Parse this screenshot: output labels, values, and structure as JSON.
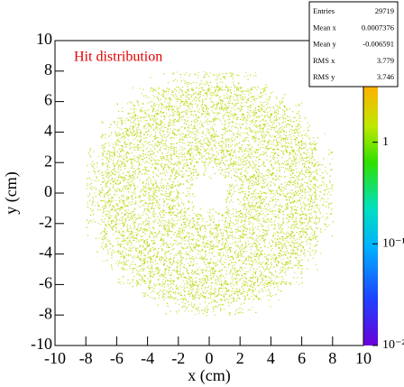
{
  "chart_data": {
    "type": "hist2d",
    "title": "Hit distribution",
    "xlabel": "x (cm)",
    "ylabel": "y (cm)",
    "xbins": [
      -10,
      -9,
      -8,
      -7,
      -6,
      -5,
      -4,
      -3,
      -2,
      -1,
      0,
      1,
      2,
      3,
      4,
      5,
      6,
      7,
      8,
      9,
      10
    ],
    "ybins": [
      -10,
      -9,
      -8,
      -7,
      -6,
      -5,
      -4,
      -3,
      -2,
      -1,
      0,
      1,
      2,
      3,
      4,
      5,
      6,
      7,
      8,
      9,
      10
    ],
    "z": [
      [
        0,
        0,
        0,
        0,
        0,
        0,
        0,
        0,
        0,
        0,
        0,
        0,
        0,
        0,
        0,
        0,
        0,
        0,
        0,
        0
      ],
      [
        0,
        0,
        0,
        0,
        0,
        0,
        0,
        0,
        0,
        0,
        0,
        0,
        0,
        0,
        0,
        0,
        0,
        0,
        0,
        0
      ],
      [
        0,
        0,
        0,
        0,
        0,
        0,
        5,
        30,
        70,
        93,
        93,
        70,
        30,
        5,
        0,
        0,
        0,
        0,
        0,
        0
      ],
      [
        0,
        0,
        0,
        0,
        0,
        30,
        110,
        175,
        186,
        186,
        186,
        186,
        175,
        110,
        30,
        0,
        0,
        0,
        0,
        0
      ],
      [
        0,
        0,
        0,
        0,
        50,
        150,
        186,
        186,
        186,
        186,
        186,
        186,
        186,
        186,
        150,
        50,
        0,
        0,
        0,
        0
      ],
      [
        0,
        0,
        0,
        30,
        150,
        186,
        186,
        160,
        140,
        130,
        130,
        140,
        160,
        186,
        186,
        150,
        30,
        0,
        0,
        0
      ],
      [
        0,
        0,
        5,
        110,
        186,
        186,
        160,
        130,
        150,
        186,
        186,
        150,
        130,
        160,
        186,
        186,
        110,
        5,
        0,
        0
      ],
      [
        0,
        0,
        30,
        175,
        186,
        160,
        130,
        186,
        186,
        186,
        186,
        186,
        186,
        130,
        160,
        186,
        175,
        30,
        0,
        0
      ],
      [
        0,
        0,
        70,
        186,
        186,
        140,
        150,
        186,
        170,
        80,
        80,
        170,
        186,
        150,
        140,
        186,
        186,
        70,
        0,
        0
      ],
      [
        0,
        0,
        93,
        186,
        186,
        130,
        186,
        186,
        80,
        0,
        0,
        80,
        186,
        186,
        130,
        186,
        186,
        93,
        0,
        0
      ],
      [
        0,
        0,
        93,
        186,
        186,
        130,
        186,
        186,
        80,
        0,
        0,
        80,
        186,
        186,
        130,
        186,
        186,
        93,
        0,
        0
      ],
      [
        0,
        0,
        70,
        186,
        186,
        140,
        150,
        186,
        170,
        80,
        80,
        170,
        186,
        150,
        140,
        186,
        186,
        70,
        0,
        0
      ],
      [
        0,
        0,
        30,
        175,
        186,
        160,
        130,
        186,
        186,
        186,
        186,
        186,
        186,
        130,
        160,
        186,
        175,
        30,
        0,
        0
      ],
      [
        0,
        0,
        5,
        110,
        186,
        186,
        160,
        130,
        150,
        186,
        186,
        150,
        130,
        160,
        186,
        186,
        110,
        5,
        0,
        0
      ],
      [
        0,
        0,
        0,
        30,
        150,
        186,
        186,
        160,
        140,
        130,
        130,
        140,
        160,
        186,
        186,
        150,
        30,
        0,
        0,
        0
      ],
      [
        0,
        0,
        0,
        0,
        50,
        150,
        186,
        186,
        186,
        186,
        186,
        186,
        186,
        186,
        150,
        50,
        0,
        0,
        0,
        0
      ],
      [
        0,
        0,
        0,
        0,
        0,
        30,
        110,
        175,
        186,
        186,
        186,
        186,
        175,
        110,
        30,
        0,
        0,
        0,
        0,
        0
      ],
      [
        0,
        0,
        0,
        0,
        0,
        0,
        5,
        30,
        70,
        93,
        93,
        70,
        30,
        5,
        0,
        0,
        0,
        0,
        0,
        0
      ],
      [
        0,
        0,
        0,
        0,
        0,
        0,
        0,
        0,
        0,
        0,
        0,
        0,
        0,
        0,
        0,
        0,
        0,
        0,
        0,
        0
      ],
      [
        0,
        0,
        0,
        0,
        0,
        0,
        0,
        0,
        0,
        0,
        0,
        0,
        0,
        0,
        0,
        0,
        0,
        0,
        0,
        0
      ]
    ],
    "color": "#b9d400",
    "xlim": [
      -10,
      10
    ],
    "ylim": [
      -10,
      10
    ],
    "xticks": [
      -10,
      -8,
      -6,
      -4,
      -2,
      0,
      2,
      4,
      6,
      8,
      10
    ],
    "yticks": [
      -10,
      -8,
      -6,
      -4,
      -2,
      0,
      2,
      4,
      6,
      8,
      10
    ],
    "zlog": true,
    "zlim": [
      0.01,
      10
    ],
    "zticks": [
      {
        "value": 10,
        "label": "10"
      },
      {
        "value": 1,
        "label": "1"
      },
      {
        "value": 0.1,
        "label": "10⁻¹"
      },
      {
        "value": 0.01,
        "label": "10⁻²"
      }
    ],
    "stats": [
      {
        "label": "Entries",
        "value": 29719
      },
      {
        "label": "Mean x",
        "value": 0.0007376
      },
      {
        "label": "Mean y",
        "value": -0.006591
      },
      {
        "label": "RMS x",
        "value": 3.779
      },
      {
        "label": "RMS y",
        "value": 3.746
      }
    ]
  }
}
